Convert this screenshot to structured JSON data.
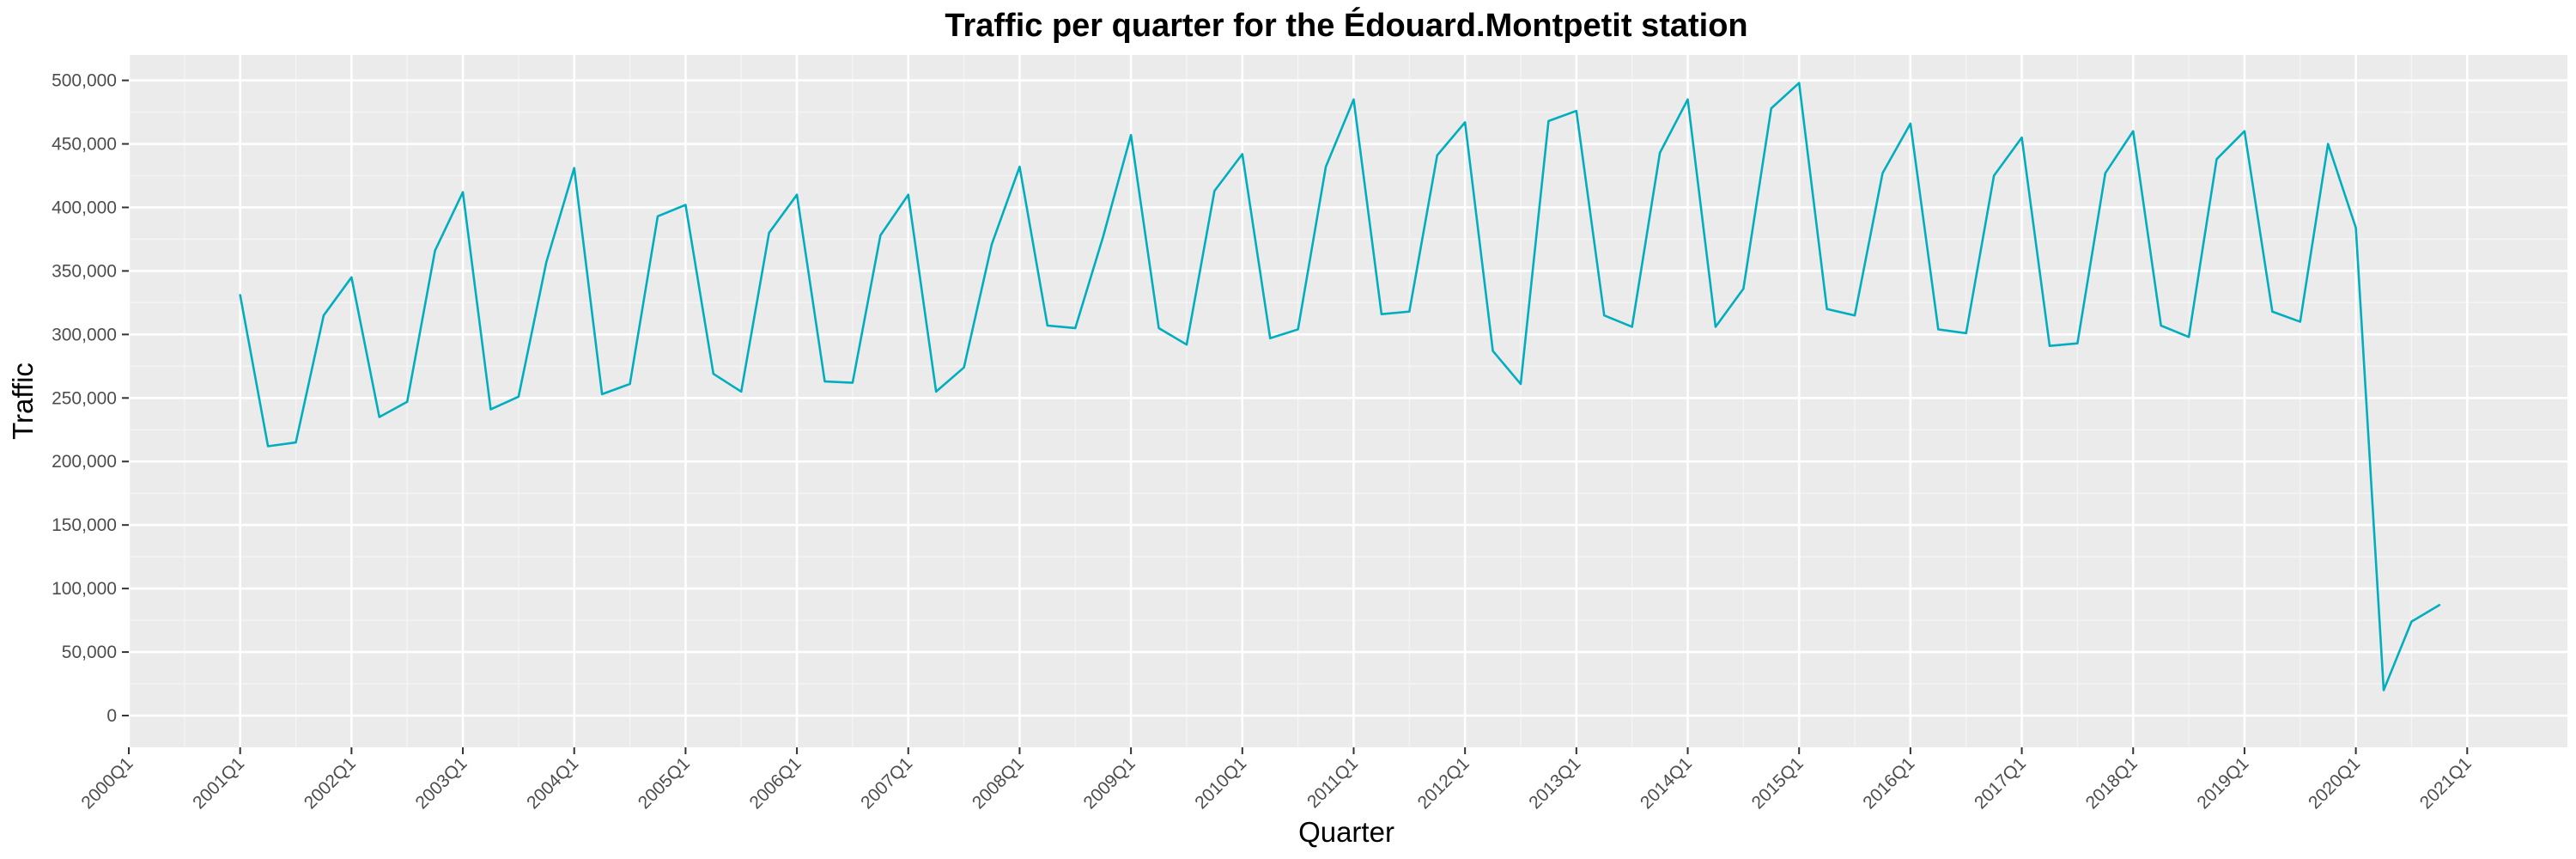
{
  "chart_data": {
    "type": "line",
    "title": "Traffic per quarter for the Édouard.Montpetit station",
    "xlabel": "Quarter",
    "ylabel": "Traffic",
    "ylim": [
      0,
      520000
    ],
    "y_ticks": [
      0,
      50000,
      100000,
      150000,
      200000,
      250000,
      300000,
      350000,
      400000,
      450000,
      500000
    ],
    "y_tick_labels": [
      "0",
      "50,000",
      "100,000",
      "150,000",
      "200,000",
      "250,000",
      "300,000",
      "350,000",
      "400,000",
      "450,000",
      "500,000"
    ],
    "x_ticks": [
      "2000Q1",
      "2001Q1",
      "2002Q1",
      "2003Q1",
      "2004Q1",
      "2005Q1",
      "2006Q1",
      "2007Q1",
      "2008Q1",
      "2009Q1",
      "2010Q1",
      "2011Q1",
      "2012Q1",
      "2013Q1",
      "2014Q1",
      "2015Q1",
      "2016Q1",
      "2017Q1",
      "2018Q1",
      "2019Q1",
      "2020Q1",
      "2021Q1"
    ],
    "grid": true,
    "panel_background": "#ebebeb",
    "series": [
      {
        "color": "#00aebf",
        "x": [
          "2001Q1",
          "2001Q2",
          "2001Q3",
          "2001Q4",
          "2002Q1",
          "2002Q2",
          "2002Q3",
          "2002Q4",
          "2003Q1",
          "2003Q2",
          "2003Q3",
          "2003Q4",
          "2004Q1",
          "2004Q2",
          "2004Q3",
          "2004Q4",
          "2005Q1",
          "2005Q2",
          "2005Q3",
          "2005Q4",
          "2006Q1",
          "2006Q2",
          "2006Q3",
          "2006Q4",
          "2007Q1",
          "2007Q2",
          "2007Q3",
          "2007Q4",
          "2008Q1",
          "2008Q2",
          "2008Q3",
          "2008Q4",
          "2009Q1",
          "2009Q2",
          "2009Q3",
          "2009Q4",
          "2010Q1",
          "2010Q2",
          "2010Q3",
          "2010Q4",
          "2011Q1",
          "2011Q2",
          "2011Q3",
          "2011Q4",
          "2012Q1",
          "2012Q2",
          "2012Q3",
          "2012Q4",
          "2013Q1",
          "2013Q2",
          "2013Q3",
          "2013Q4",
          "2014Q1",
          "2014Q2",
          "2014Q3",
          "2014Q4",
          "2015Q1",
          "2015Q2",
          "2015Q3",
          "2015Q4",
          "2016Q1",
          "2016Q2",
          "2016Q3",
          "2016Q4",
          "2017Q1",
          "2017Q2",
          "2017Q3",
          "2017Q4",
          "2018Q1",
          "2018Q2",
          "2018Q3",
          "2018Q4",
          "2019Q1",
          "2019Q2",
          "2019Q3",
          "2019Q4",
          "2020Q1",
          "2020Q2",
          "2020Q3",
          "2020Q4"
        ],
        "values": [
          331000,
          212000,
          215000,
          315000,
          345000,
          235000,
          247000,
          366000,
          412000,
          241000,
          251000,
          357000,
          431000,
          253000,
          261000,
          393000,
          402000,
          269000,
          255000,
          380000,
          410000,
          263000,
          262000,
          378000,
          410000,
          255000,
          274000,
          371000,
          432000,
          307000,
          305000,
          377000,
          457000,
          305000,
          292000,
          413000,
          442000,
          297000,
          304000,
          432000,
          485000,
          316000,
          318000,
          441000,
          467000,
          287000,
          261000,
          468000,
          476000,
          315000,
          306000,
          443000,
          485000,
          306000,
          336000,
          478000,
          498000,
          320000,
          315000,
          427000,
          466000,
          304000,
          301000,
          425000,
          455000,
          291000,
          293000,
          427000,
          460000,
          307000,
          298000,
          438000,
          460000,
          318000,
          310000,
          450000,
          384000,
          20000,
          74000,
          87000
        ]
      }
    ]
  }
}
